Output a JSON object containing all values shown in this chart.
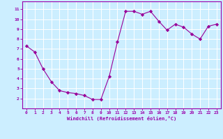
{
  "x": [
    0,
    1,
    2,
    3,
    4,
    5,
    6,
    7,
    8,
    9,
    10,
    11,
    12,
    13,
    14,
    15,
    16,
    17,
    18,
    19,
    20,
    21,
    22,
    23
  ],
  "y": [
    7.3,
    6.7,
    5.0,
    3.7,
    2.8,
    2.6,
    2.5,
    2.3,
    1.9,
    1.9,
    4.2,
    7.7,
    10.8,
    10.8,
    10.5,
    10.8,
    9.8,
    8.9,
    9.5,
    9.2,
    8.5,
    8.0,
    9.3,
    9.5
  ],
  "xlabel": "Windchill (Refroidissement éolien,°C)",
  "xlim": [
    -0.5,
    23.5
  ],
  "ylim": [
    1.0,
    11.8
  ],
  "yticks": [
    2,
    3,
    4,
    5,
    6,
    7,
    8,
    9,
    10,
    11
  ],
  "xticks": [
    0,
    1,
    2,
    3,
    4,
    5,
    6,
    7,
    8,
    9,
    10,
    11,
    12,
    13,
    14,
    15,
    16,
    17,
    18,
    19,
    20,
    21,
    22,
    23
  ],
  "line_color": "#990099",
  "marker": "D",
  "marker_size": 2.2,
  "bg_color": "#cceeff",
  "grid_color": "#ffffff",
  "spine_color": "#9900aa",
  "tick_label_color": "#9900aa",
  "xlabel_color": "#9900aa"
}
